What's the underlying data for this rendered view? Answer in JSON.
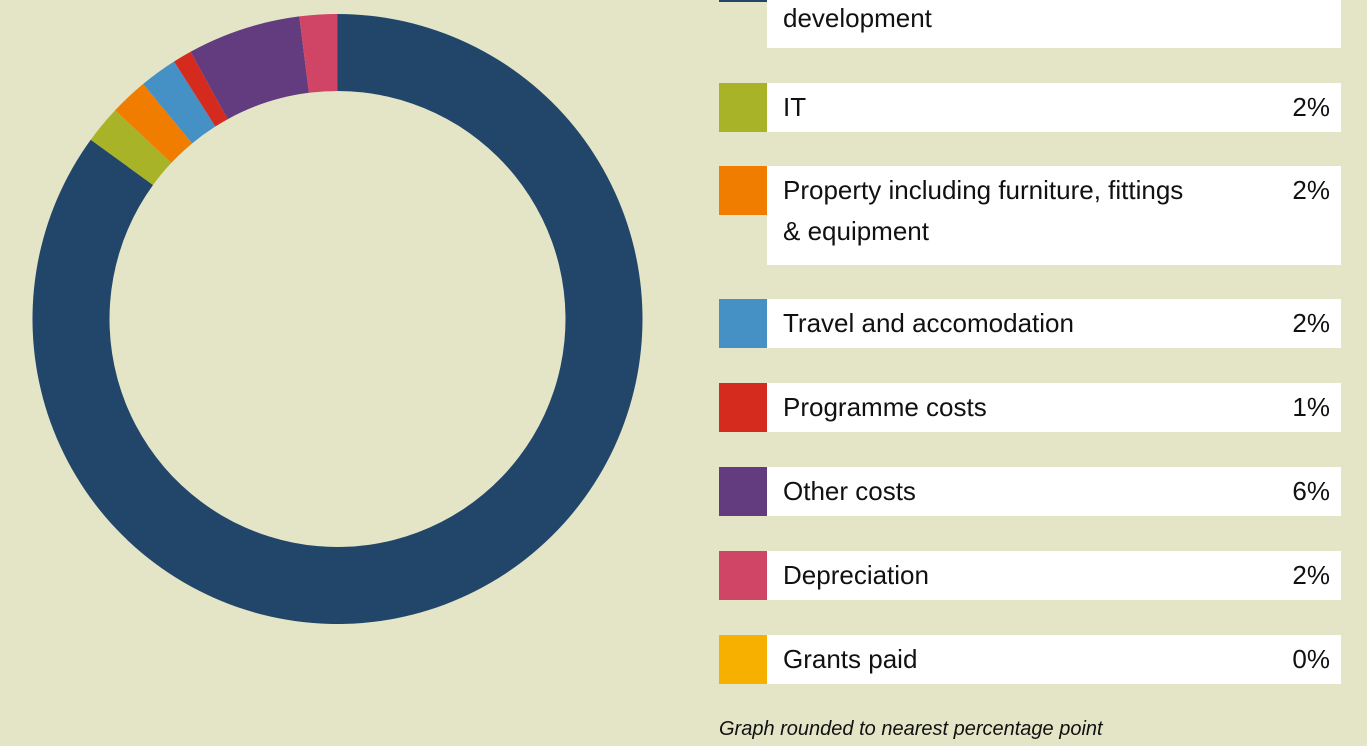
{
  "chart_data": {
    "type": "donut",
    "categories": [
      "development",
      "IT",
      "Property including furniture, fittings & equipment",
      "Travel and accomodation",
      "Programme costs",
      "Other costs",
      "Depreciation",
      "Grants paid"
    ],
    "values": [
      85,
      2,
      2,
      2,
      1,
      6,
      2,
      0
    ],
    "value_labels": [
      null,
      "2%",
      "2%",
      "2%",
      "1%",
      "6%",
      "2%",
      "0%"
    ],
    "colors": [
      "#21466a",
      "#a9b327",
      "#f07c00",
      "#4591c6",
      "#d52b1e",
      "#623c7e",
      "#d04565",
      "#f7b000"
    ],
    "note": "Graph rounded to nearest percentage point"
  }
}
